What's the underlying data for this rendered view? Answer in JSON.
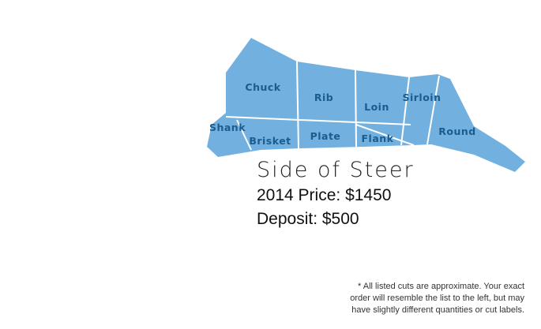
{
  "diagram": {
    "cuts": [
      "Chuck",
      "Rib",
      "Loin",
      "Sirloin",
      "Shank",
      "Brisket",
      "Plate",
      "Flank",
      "Round"
    ],
    "title": "Side of Steer",
    "price": "2014 Price: $1450",
    "deposit": "Deposit: $500",
    "footnote": [
      "* All listed cuts are approximate. Your exact",
      "order will resemble the list to the left, but may",
      "have slightly different quantities or cut labels."
    ]
  }
}
